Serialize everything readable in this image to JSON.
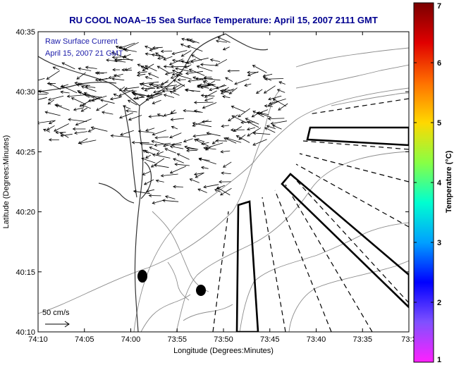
{
  "title": "RU COOL  NOAA–15  Sea Surface Temperature:  April 15, 2007 2111 GMT",
  "inset": {
    "line1": "Raw Surface Current",
    "line2": "April 15, 2007 21 GMT"
  },
  "axes": {
    "xlabel": "Longitude (Degrees:Minutes)",
    "ylabel": "Latitude (Degrees:Minutes)",
    "xticks": [
      "74:10",
      "74:05",
      "74:00",
      "73:55",
      "73:50",
      "73:45",
      "73:40",
      "73:35",
      "73:3"
    ],
    "yticks": [
      "40:35",
      "40:30",
      "40:25",
      "40:20",
      "40:15",
      "40:10"
    ]
  },
  "scale_arrow": {
    "label": "50 cm/s"
  },
  "colorbar": {
    "label": "Temperature (°C)",
    "ticks": [
      "7",
      "6",
      "5",
      "4",
      "3",
      "2",
      "1"
    ],
    "colors": [
      "#7a0000",
      "#e00000",
      "#ff7000",
      "#ffd800",
      "#88ff44",
      "#00ffd0",
      "#00a0ff",
      "#0000ff",
      "#8050ff",
      "#ff20ff"
    ]
  },
  "colors": {
    "title": "#000090",
    "inset_text": "#1a1aa8",
    "bathymetry": "#8c8c8c",
    "coast": "#333333"
  }
}
